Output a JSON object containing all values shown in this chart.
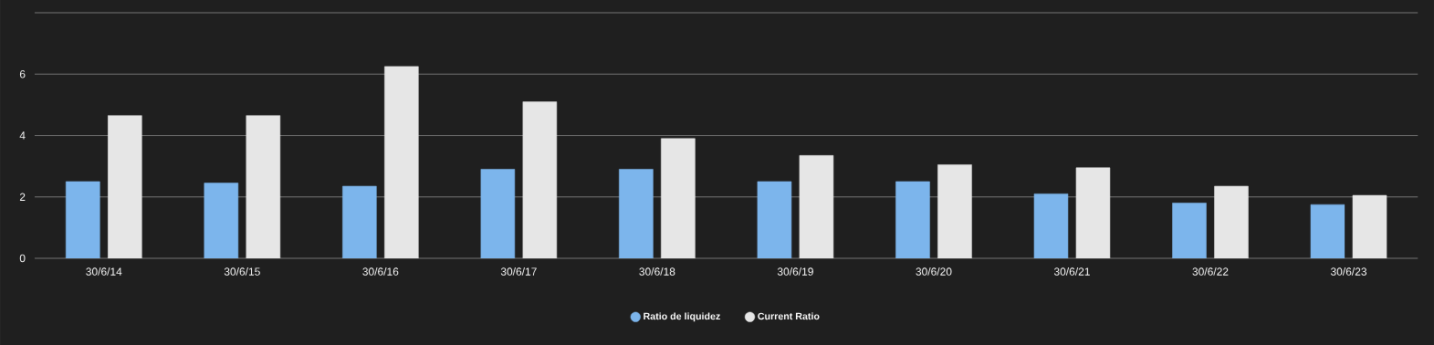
{
  "chart_data": {
    "type": "bar",
    "categories": [
      "30/6/14",
      "30/6/15",
      "30/6/16",
      "30/6/17",
      "30/6/18",
      "30/6/19",
      "30/6/20",
      "30/6/21",
      "30/6/22",
      "30/6/23"
    ],
    "series": [
      {
        "name": "Ratio de liquidez",
        "color": "#7cb5ec",
        "values": [
          2.5,
          2.45,
          2.35,
          2.9,
          2.9,
          2.5,
          2.5,
          2.1,
          1.8,
          1.75
        ]
      },
      {
        "name": "Current Ratio",
        "color": "#e6e6e6",
        "values": [
          4.65,
          4.65,
          6.25,
          5.1,
          3.9,
          3.35,
          3.05,
          2.95,
          2.35,
          2.05
        ]
      }
    ],
    "ylim": [
      0,
      8
    ],
    "yticks": [
      0,
      2,
      4,
      6,
      {
        "value": 8,
        "label": null
      }
    ],
    "grid": "y",
    "legend": "bottom",
    "marker": "circle"
  }
}
